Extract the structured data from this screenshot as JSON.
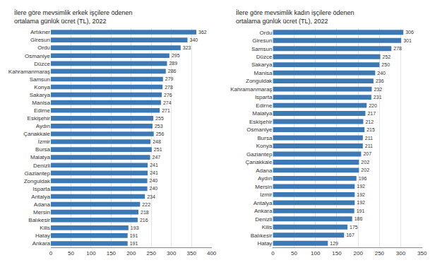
{
  "chart_data": [
    {
      "type": "bar",
      "orientation": "horizontal",
      "title": "İlere göre mevsimlik erkek işçilere ödenen ortalama günlük ücret (TL), 2022",
      "categories": [
        "Artıkner",
        "Giresun",
        "Ordu",
        "Osmaniye",
        "Düzce",
        "Kahramanmaraş",
        "Samsun",
        "Konya",
        "Sakarya",
        "Manisa",
        "Edirne",
        "Eskişehir",
        "Aydın",
        "Çanakkale",
        "İzmir",
        "Bursa",
        "Malatya",
        "Denizli",
        "Gaziantep",
        "Zonguldak",
        "Isparta",
        "Antalya",
        "Adana",
        "Mersin",
        "Balıkesir",
        "Kilis",
        "Hatay",
        "Ankara"
      ],
      "values": [
        362,
        340,
        323,
        295,
        289,
        286,
        279,
        278,
        276,
        274,
        271,
        255,
        253,
        256,
        248,
        251,
        247,
        241,
        241,
        240,
        240,
        234,
        222,
        218,
        216,
        193,
        191,
        191
      ],
      "color": "#3D7AB5",
      "xlim": [
        0,
        400
      ],
      "xticks": [
        0,
        50,
        100,
        150,
        200,
        250,
        300,
        350,
        400
      ],
      "grid": true,
      "data_labels": true
    },
    {
      "type": "bar",
      "orientation": "horizontal",
      "title": "İlere göre mevsimlik kadın işçilere ödenen ortalama günlük ücret (TL), 2022",
      "categories": [
        "Ordu",
        "Giresun",
        "Samsun",
        "Düzce",
        "Sakarya",
        "Manisa",
        "Zonguldak",
        "Kahramanmaraş",
        "Isparta",
        "Edirne",
        "Malatya",
        "Eskişehir",
        "Osmaniye",
        "Bursa",
        "Konya",
        "Gaziantep",
        "Çanakkale",
        "Adana",
        "Aydın",
        "Mersin",
        "İzmir",
        "Antalya",
        "Ankara",
        "Denizli",
        "Kilis",
        "Balıkesir",
        "Hatay"
      ],
      "values": [
        306,
        301,
        278,
        252,
        250,
        240,
        236,
        232,
        231,
        220,
        217,
        212,
        215,
        211,
        211,
        207,
        202,
        202,
        196,
        192,
        192,
        192,
        191,
        186,
        175,
        167,
        129
      ],
      "color": "#3D7AB5",
      "xlim": [
        0,
        350
      ],
      "xticks": [
        0,
        50,
        100,
        150,
        200,
        250,
        300,
        350
      ],
      "grid": true,
      "data_labels": true
    }
  ]
}
